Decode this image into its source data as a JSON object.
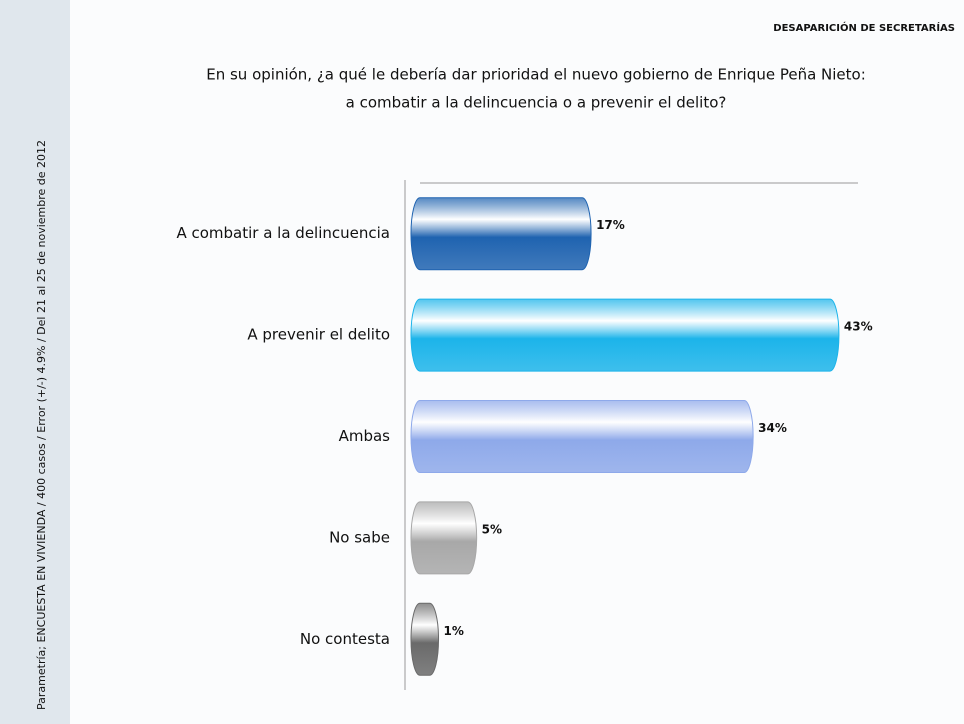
{
  "header": "DESAPARICIÓN DE SECRETARÍAS",
  "source": "Parametría; ENCUESTA EN VIVIENDA / 400 casos / Error (+/-) 4.9% / Del 21 al 25 de noviembre de 2012",
  "chart_data": {
    "type": "bar",
    "orientation": "horizontal",
    "title": [
      "En su opinión, ¿a qué le debería dar prioridad el nuevo gobierno de Enrique Peña Nieto:",
      "a combatir a la delincuencia o a prevenir el delito?"
    ],
    "categories": [
      "A combatir a la delincuencia",
      "A prevenir el delito",
      "Ambas",
      "No sabe",
      "No contesta"
    ],
    "values": [
      17,
      43,
      34,
      5,
      1
    ],
    "value_labels": [
      "17%",
      "43%",
      "34%",
      "5%",
      "1%"
    ],
    "colors": [
      "#1f63b0",
      "#1cb4ea",
      "#8ea9ea",
      "#a8a8a8",
      "#6a6a6a"
    ],
    "xlim": [
      0,
      45
    ]
  }
}
